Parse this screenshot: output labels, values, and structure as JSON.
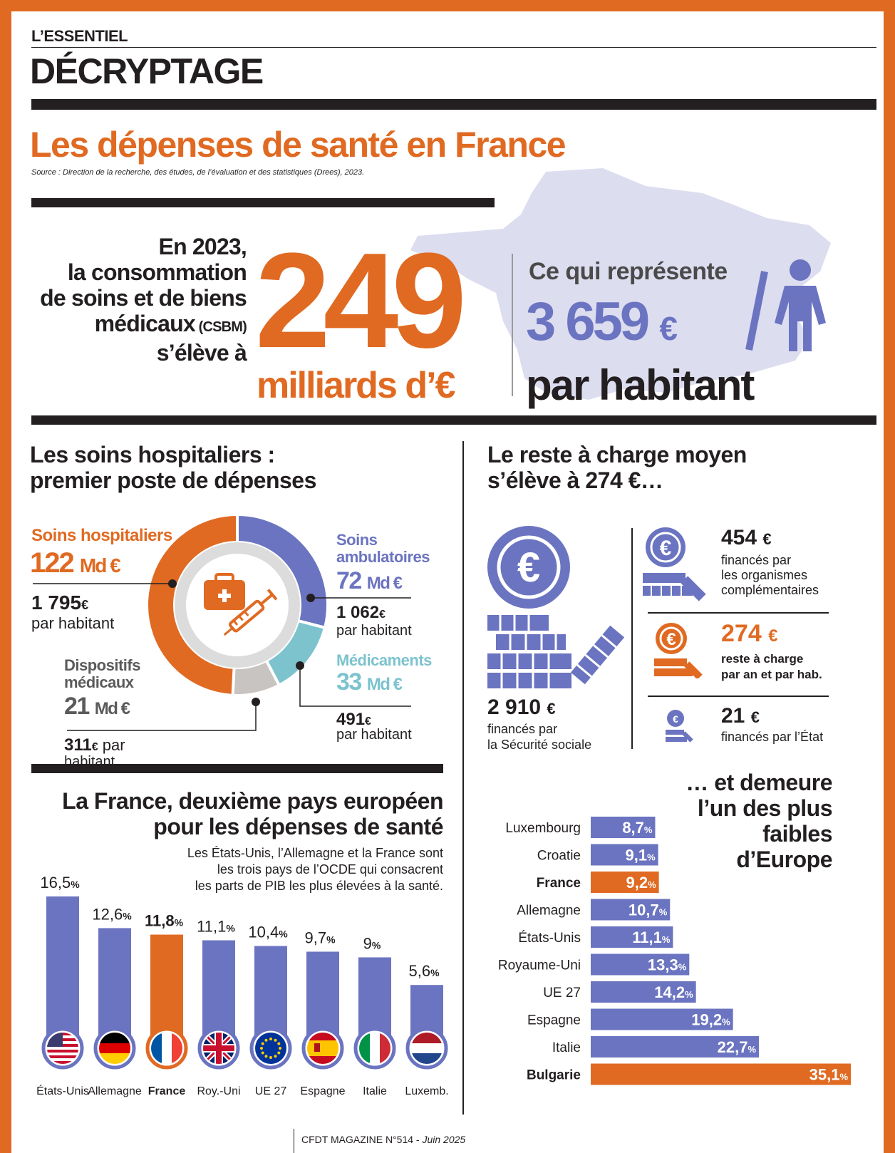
{
  "header": {
    "kicker": "L’ESSENTIEL",
    "section": "DÉCRYPTAGE"
  },
  "title": "Les dépenses de santé en France",
  "source": "Source : Direction de la recherche, des études, de l’évaluation et des statistiques (Drees), 2023.",
  "hero": {
    "lines": [
      "En 2023,",
      "la consommation",
      "de soins et de biens"
    ],
    "line4_main": "médicaux",
    "line4_abbr": " (CSBM)",
    "line5": "s’élève à",
    "big_number": "249",
    "big_unit": "milliards d’€",
    "per_intro": "Ce qui représente",
    "per_value": "3 659",
    "per_currency": "€",
    "per_suffix": "par habitant"
  },
  "hospital_section": {
    "title_line1": "Les soins hospitaliers :",
    "title_line2": "premier poste de dépenses",
    "labels": {
      "hosp_name": "Soins hospitaliers",
      "hosp_value": "122",
      "hosp_per": "1 795",
      "ambu_name1": "Soins",
      "ambu_name2": "ambulatoires",
      "ambu_value": "72",
      "ambu_per": "1 062",
      "med_name": "Médicaments",
      "med_value": "33",
      "med_per": "491",
      "disp_name1": "Dispositifs",
      "disp_name2": "médicaux",
      "disp_value": "21",
      "disp_per": "311",
      "unit_md": "Md €",
      "unit_eur": "€",
      "par_habitant": "par habitant",
      "par": "par",
      "habitant": "habitant"
    }
  },
  "rac_section": {
    "title_line1": "Le reste à charge moyen",
    "title_line2": "s’élève à 274 €…",
    "secu_value": "2 910",
    "secu_label1": "financés par",
    "secu_label2": "la Sécurité sociale",
    "oc_value": "454",
    "oc_label1": "financés par",
    "oc_label2": "les organismes",
    "oc_label3": "complémentaires",
    "rac_value": "274",
    "rac_label1": "reste à charge",
    "rac_label2": "par an et par hab.",
    "etat_value": "21",
    "etat_label": "financés par l’État",
    "euro": "€"
  },
  "europe_section": {
    "title_line1": "La France, deuxième pays européen",
    "title_line2": "pour les dépenses de santé",
    "note_line1": "Les États-Unis, l’Allemagne et la France sont",
    "note_line2": "les trois pays de l’OCDE qui consacrent",
    "note_line3": "les parts de PIB les plus élevées à la santé."
  },
  "lowest_section": {
    "title_line1": "… et demeure",
    "title_line2": "l’un des plus",
    "title_line3": "faibles",
    "title_line4": "d’Europe"
  },
  "colors": {
    "orange": "#e06a22",
    "blue": "#6b74c0",
    "teal": "#7cc3ce",
    "grey": "#c8c4c1",
    "dark": "#231f20"
  },
  "chart_data": [
    {
      "type": "pie",
      "labels": [
        "Soins hospitaliers",
        "Soins ambulatoires",
        "Médicaments",
        "Dispositifs médicaux"
      ],
      "values": [
        122,
        72,
        33,
        21
      ],
      "per_habitant": [
        1795,
        1062,
        491,
        311
      ],
      "colors": [
        "#e06a22",
        "#6b74c0",
        "#7cc3ce",
        "#c8c4c1"
      ],
      "value_unit": "Md €"
    },
    {
      "type": "bar",
      "categories": [
        "États-Unis",
        "Allemagne",
        "France",
        "Roy.-Uni",
        "UE 27",
        "Espagne",
        "Italie",
        "Luxemb."
      ],
      "values": [
        16.5,
        12.6,
        11.8,
        11.1,
        10.4,
        9.7,
        9,
        5.6
      ],
      "value_labels": [
        "16,5",
        "12,6",
        "11,8",
        "11,1",
        "10,4",
        "9,7",
        "9",
        "5,6"
      ],
      "highlight": "France",
      "unit": "%",
      "flags": [
        "us-flag-icon",
        "germany-flag-icon",
        "france-flag-icon",
        "uk-flag-icon",
        "eu-flag-icon",
        "spain-flag-icon",
        "italy-flag-icon",
        "netherlands-flag-icon"
      ]
    },
    {
      "type": "bar",
      "orientation": "horizontal",
      "categories": [
        "Luxembourg",
        "Croatie",
        "France",
        "Allemagne",
        "États-Unis",
        "Royaume-Uni",
        "UE 27",
        "Espagne",
        "Italie",
        "Bulgarie"
      ],
      "values": [
        8.7,
        9.1,
        9.2,
        10.7,
        11.1,
        13.3,
        14.2,
        19.2,
        22.7,
        35.1
      ],
      "value_labels": [
        "8,7",
        "9,1",
        "9,2",
        "10,7",
        "11,1",
        "13,3",
        "14,2",
        "19,2",
        "22,7",
        "35,1"
      ],
      "highlight": [
        "France",
        "Bulgarie"
      ],
      "unit": "%"
    }
  ],
  "footer": {
    "magazine": "CFDT MAGAZINE N°514 - ",
    "date": "Juin 2025"
  }
}
